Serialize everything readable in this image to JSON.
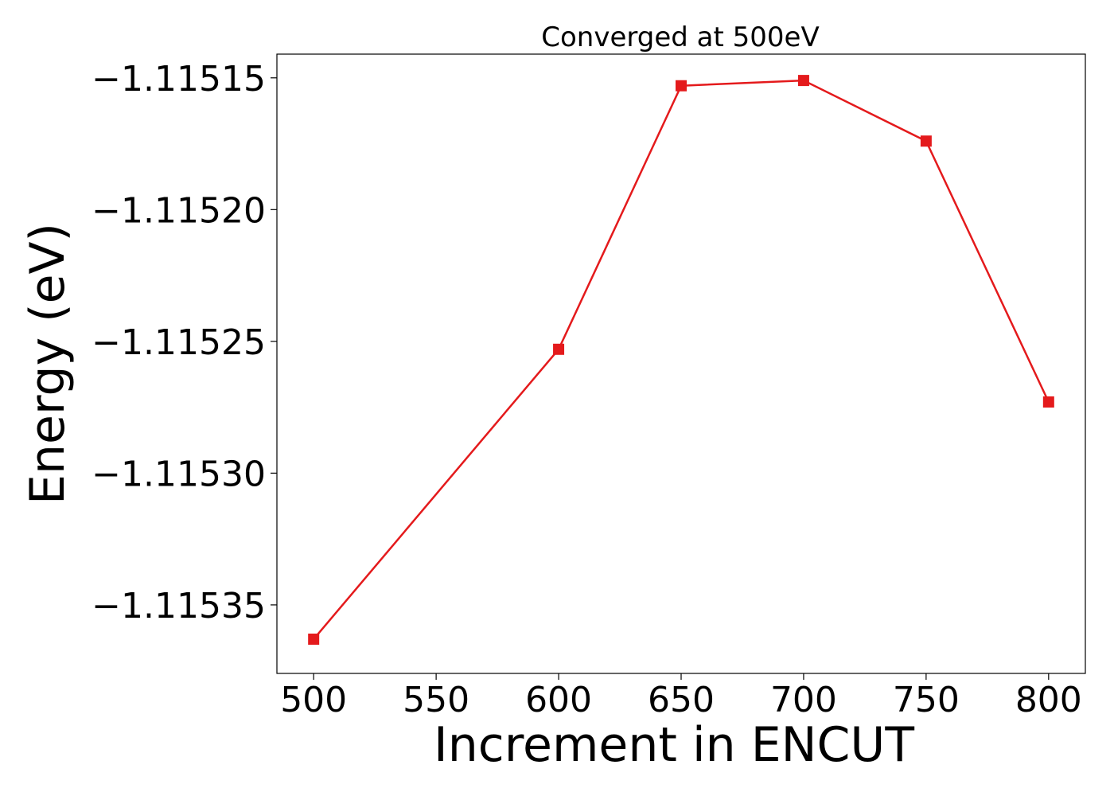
{
  "chart_data": {
    "type": "line",
    "title": "Converged at 500eV",
    "xlabel": "Increment in ENCUT",
    "ylabel": "Energy (eV)",
    "x": [
      500,
      600,
      650,
      700,
      750,
      800
    ],
    "series": [
      {
        "values": [
          -1.115363,
          -1.115253,
          -1.115153,
          -1.115151,
          -1.115174,
          -1.115273
        ],
        "color": "#e41a1c",
        "marker": "square"
      }
    ],
    "xticks": [
      "500",
      "550",
      "600",
      "650",
      "700",
      "750",
      "800"
    ],
    "yticks": [
      "−1.11515",
      "−1.11520",
      "−1.11525",
      "−1.11530",
      "−1.11535"
    ],
    "xlim": [
      485,
      815
    ],
    "ylim": [
      -1.115376,
      -1.115141
    ],
    "grid": false
  }
}
